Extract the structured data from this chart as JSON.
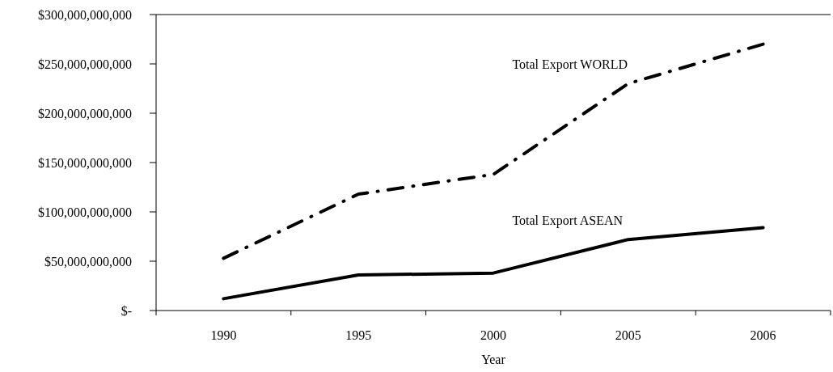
{
  "chart_data": {
    "type": "line",
    "xlabel": "Year",
    "categories": [
      "1990",
      "1995",
      "2000",
      "2005",
      "2006"
    ],
    "series": [
      {
        "name": "Total Export WORLD",
        "color": "#000000",
        "line_style": "dashdot",
        "values": [
          53000000000,
          118000000000,
          138000000000,
          230000000000,
          270000000000
        ]
      },
      {
        "name": "Total Export ASEAN",
        "color": "#000000",
        "line_style": "solid",
        "values": [
          12000000000,
          36000000000,
          38000000000,
          72000000000,
          84000000000
        ]
      }
    ],
    "ylim": [
      0,
      300000000000
    ],
    "yticks": [
      {
        "value": 0,
        "label": "$-"
      },
      {
        "value": 50000000000,
        "label": "$50,000,000,000"
      },
      {
        "value": 100000000000,
        "label": "$100,000,000,000"
      },
      {
        "value": 150000000000,
        "label": "$150,000,000,000"
      },
      {
        "value": 200000000000,
        "label": "$200,000,000,000"
      },
      {
        "value": 250000000000,
        "label": "$250,000,000,000"
      },
      {
        "value": 300000000000,
        "label": "$300,000,000,000"
      }
    ],
    "grid": false,
    "marker": "none"
  }
}
